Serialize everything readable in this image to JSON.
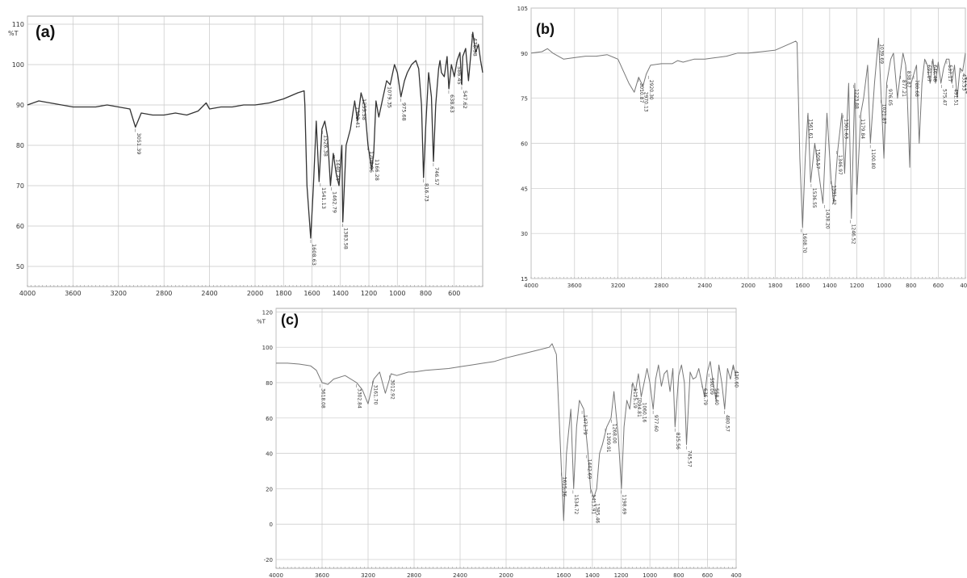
{
  "chart_data": [
    {
      "type": "line",
      "panel_label": "(a)",
      "ylabel": "%T",
      "xlim": [
        4000,
        400
      ],
      "ylim": [
        45,
        112
      ],
      "grid": true,
      "x_ticks": [
        "4000",
        "3600",
        "3200",
        "2800",
        "2400",
        "2000",
        "1800",
        "1600",
        "1400",
        "1200",
        "1000",
        "800",
        "600"
      ],
      "x_tick_values": [
        4000,
        3600,
        3200,
        2800,
        2400,
        2000,
        1800,
        1600,
        1400,
        1200,
        1000,
        800,
        600
      ],
      "y_ticks": [
        "110",
        "100",
        "90",
        "80",
        "70",
        "60",
        "50"
      ],
      "y_tick_values": [
        110,
        100,
        90,
        80,
        70,
        60,
        50
      ],
      "series": [
        {
          "x": [
            4000,
            3900,
            3800,
            3700,
            3600,
            3500,
            3400,
            3300,
            3200,
            3100,
            3051,
            3000,
            2900,
            2800,
            2700,
            2600,
            2500,
            2430,
            2400,
            2300,
            2200,
            2100,
            2000,
            1900,
            1800,
            1700,
            1655,
            1650,
            1635,
            1609,
            1590,
            1570,
            1550,
            1530,
            1510,
            1490,
            1470,
            1450,
            1430,
            1410,
            1390,
            1383,
            1360,
            1330,
            1300,
            1280,
            1255,
            1230,
            1206,
            1180,
            1166,
            1150,
            1130,
            1100,
            1075,
            1050,
            1020,
            1000,
            975,
            950,
            930,
            900,
            870,
            850,
            830,
            816,
            800,
            780,
            760,
            746,
            730,
            710,
            700,
            690,
            670,
            650,
            638,
            620,
            600,
            580,
            560,
            547,
            540,
            520,
            500,
            470,
            450,
            430,
            415,
            400
          ],
          "y": [
            90,
            91,
            90.5,
            90,
            89.5,
            89.5,
            89.5,
            90,
            89.5,
            89,
            84.5,
            88,
            87.5,
            87.5,
            88,
            87.5,
            88.5,
            90.5,
            89,
            89.5,
            89.5,
            90,
            90,
            90.5,
            91.5,
            93,
            93.5,
            90,
            70,
            57,
            70,
            86,
            71,
            84,
            86,
            82,
            70,
            78,
            73,
            70,
            80,
            61,
            80,
            84,
            91,
            86,
            93,
            90,
            80,
            74,
            78,
            91,
            87,
            92,
            96,
            95,
            100,
            98,
            92,
            96,
            98,
            100,
            101,
            99,
            90,
            72,
            85,
            98,
            92,
            76,
            90,
            99,
            101,
            98,
            97,
            102,
            94,
            100,
            97,
            101,
            103,
            95,
            102,
            104,
            96,
            108,
            103,
            105,
            101,
            98
          ]
        }
      ],
      "annotations": [
        "3051.39",
        "1608.63",
        "1541.13",
        "1526.38",
        "1462.79",
        "1440.24",
        "1383.58",
        "1303.41",
        "1255.58",
        "1206.96",
        "1166.28",
        "1079.35",
        "975.68",
        "816.73",
        "746.57",
        "638.63",
        "586.45",
        "547.62",
        "476.58"
      ]
    },
    {
      "type": "line",
      "panel_label": "(b)",
      "xlim": [
        4000,
        400
      ],
      "ylim": [
        15,
        105
      ],
      "grid": true,
      "x_ticks": [
        "4000",
        "3600",
        "3200",
        "2800",
        "2400",
        "2000",
        "1800",
        "1600",
        "1400",
        "1200",
        "1000",
        "800",
        "600",
        "400"
      ],
      "x_tick_values": [
        4000,
        3600,
        3200,
        2800,
        2400,
        2000,
        1800,
        1600,
        1400,
        1200,
        1000,
        800,
        600,
        400
      ],
      "y_ticks": [
        "105",
        "90",
        "75",
        "60",
        "45",
        "30",
        "15"
      ],
      "y_tick_values": [
        105,
        90,
        75,
        60,
        45,
        30,
        15
      ],
      "series": [
        {
          "x": [
            4000,
            3900,
            3850,
            3800,
            3700,
            3600,
            3500,
            3400,
            3300,
            3200,
            3100,
            3050,
            3010,
            2970,
            2940,
            2900,
            2800,
            2700,
            2650,
            2600,
            2500,
            2400,
            2300,
            2200,
            2100,
            2000,
            1900,
            1800,
            1700,
            1650,
            1640,
            1620,
            1600,
            1580,
            1560,
            1540,
            1510,
            1480,
            1450,
            1420,
            1390,
            1370,
            1340,
            1310,
            1290,
            1260,
            1240,
            1215,
            1200,
            1170,
            1150,
            1120,
            1100,
            1070,
            1050,
            1040,
            1020,
            1000,
            980,
            950,
            930,
            900,
            880,
            860,
            840,
            830,
            810,
            800,
            780,
            760,
            740,
            720,
            700,
            680,
            660,
            640,
            620,
            600,
            580,
            560,
            540,
            520,
            500,
            480,
            460,
            440,
            420,
            400
          ],
          "y": [
            90,
            90.5,
            91.5,
            90,
            88,
            88.5,
            89,
            89,
            89.5,
            88,
            80,
            77,
            82,
            79,
            83,
            86,
            86.5,
            86.5,
            87.5,
            87,
            88,
            88,
            88.5,
            89,
            90,
            90,
            90.5,
            91,
            93,
            94,
            93.5,
            55,
            32,
            55,
            70,
            47,
            60,
            50,
            40,
            70,
            48,
            40,
            58,
            70,
            50,
            80,
            35,
            80,
            43,
            70,
            75,
            86,
            60,
            80,
            90,
            95,
            75,
            55,
            80,
            88,
            90,
            75,
            83,
            90,
            86,
            78,
            52,
            80,
            83,
            86,
            60,
            80,
            88,
            86,
            80,
            88,
            80,
            87,
            80,
            85,
            88,
            88,
            80,
            86,
            75,
            85,
            84,
            90
          ]
        }
      ],
      "annotations": [
        "3010.87",
        "2970.13",
        "2920.30",
        "1608.70",
        "1561.61",
        "1536.55",
        "1509.57",
        "1438.20",
        "1391.42",
        "1346.97",
        "1301.63",
        "1246.52",
        "1223.88",
        "1179.84",
        "1100.80",
        "1039.69",
        "1021.87",
        "976.05",
        "877.21",
        "838.87",
        "780.68",
        "691.07",
        "646.48",
        "575.47",
        "537.17",
        "491.51",
        "433.53",
        "412.14"
      ]
    },
    {
      "type": "line",
      "panel_label": "(c)",
      "ylabel": "%T",
      "xlim": [
        4000,
        400
      ],
      "ylim": [
        -25,
        122
      ],
      "grid": true,
      "x_ticks": [
        "4000",
        "3600",
        "3200",
        "2800",
        "2400",
        "2000",
        "1600",
        "1400",
        "1200",
        "1000",
        "800",
        "600",
        "400"
      ],
      "x_tick_values": [
        4000,
        3600,
        3200,
        2800,
        2400,
        2000,
        1600,
        1400,
        1200,
        1000,
        800,
        600,
        400
      ],
      "y_ticks": [
        "120",
        "100",
        "80",
        "60",
        "40",
        "20",
        "0",
        "-20"
      ],
      "y_tick_values": [
        120,
        100,
        80,
        60,
        40,
        20,
        0,
        -20
      ],
      "series": [
        {
          "x": [
            4000,
            3900,
            3800,
            3700,
            3650,
            3600,
            3550,
            3500,
            3400,
            3300,
            3250,
            3200,
            3150,
            3100,
            3050,
            3000,
            2950,
            2900,
            2850,
            2800,
            2700,
            2600,
            2500,
            2400,
            2300,
            2200,
            2100,
            2000,
            1900,
            1800,
            1700,
            1680,
            1650,
            1615,
            1600,
            1580,
            1550,
            1530,
            1510,
            1490,
            1460,
            1430,
            1413,
            1390,
            1370,
            1350,
            1330,
            1300,
            1270,
            1250,
            1220,
            1198,
            1180,
            1160,
            1140,
            1120,
            1100,
            1080,
            1060,
            1040,
            1020,
            1000,
            977,
            960,
            940,
            920,
            900,
            880,
            860,
            840,
            825,
            800,
            780,
            760,
            745,
            720,
            700,
            680,
            660,
            640,
            620,
            600,
            580,
            560,
            540,
            520,
            500,
            480,
            460,
            440,
            420,
            400
          ],
          "y": [
            91,
            91,
            90.5,
            89.5,
            87,
            80,
            79,
            82,
            84,
            80,
            76,
            68,
            82,
            86,
            74,
            85,
            84,
            85,
            86,
            86,
            87,
            87.5,
            88,
            89,
            90,
            91,
            92,
            94,
            96,
            98,
            100,
            102,
            96,
            30,
            2,
            40,
            65,
            20,
            55,
            70,
            65,
            40,
            20,
            15,
            20,
            40,
            45,
            55,
            60,
            75,
            50,
            20,
            55,
            70,
            65,
            80,
            75,
            85,
            72,
            80,
            88,
            80,
            65,
            82,
            90,
            78,
            85,
            87,
            75,
            88,
            55,
            84,
            90,
            80,
            45,
            86,
            82,
            83,
            88,
            80,
            72,
            86,
            92,
            80,
            70,
            90,
            80,
            65,
            88,
            82,
            90,
            83
          ]
        }
      ],
      "annotations": [
        "3618.08",
        "3302.84",
        "3161.70",
        "3012.92",
        "1615.36",
        "1534.72",
        "1471.79",
        "1442.69",
        "1413.91",
        "1385.46",
        "1309.91",
        "1268.00",
        "1198.69",
        "1125.19",
        "1094.81",
        "1060.16",
        "977.60",
        "825.56",
        "745.57",
        "636.79",
        "590.09",
        "558.40",
        "480.57",
        "420.60"
      ]
    }
  ]
}
